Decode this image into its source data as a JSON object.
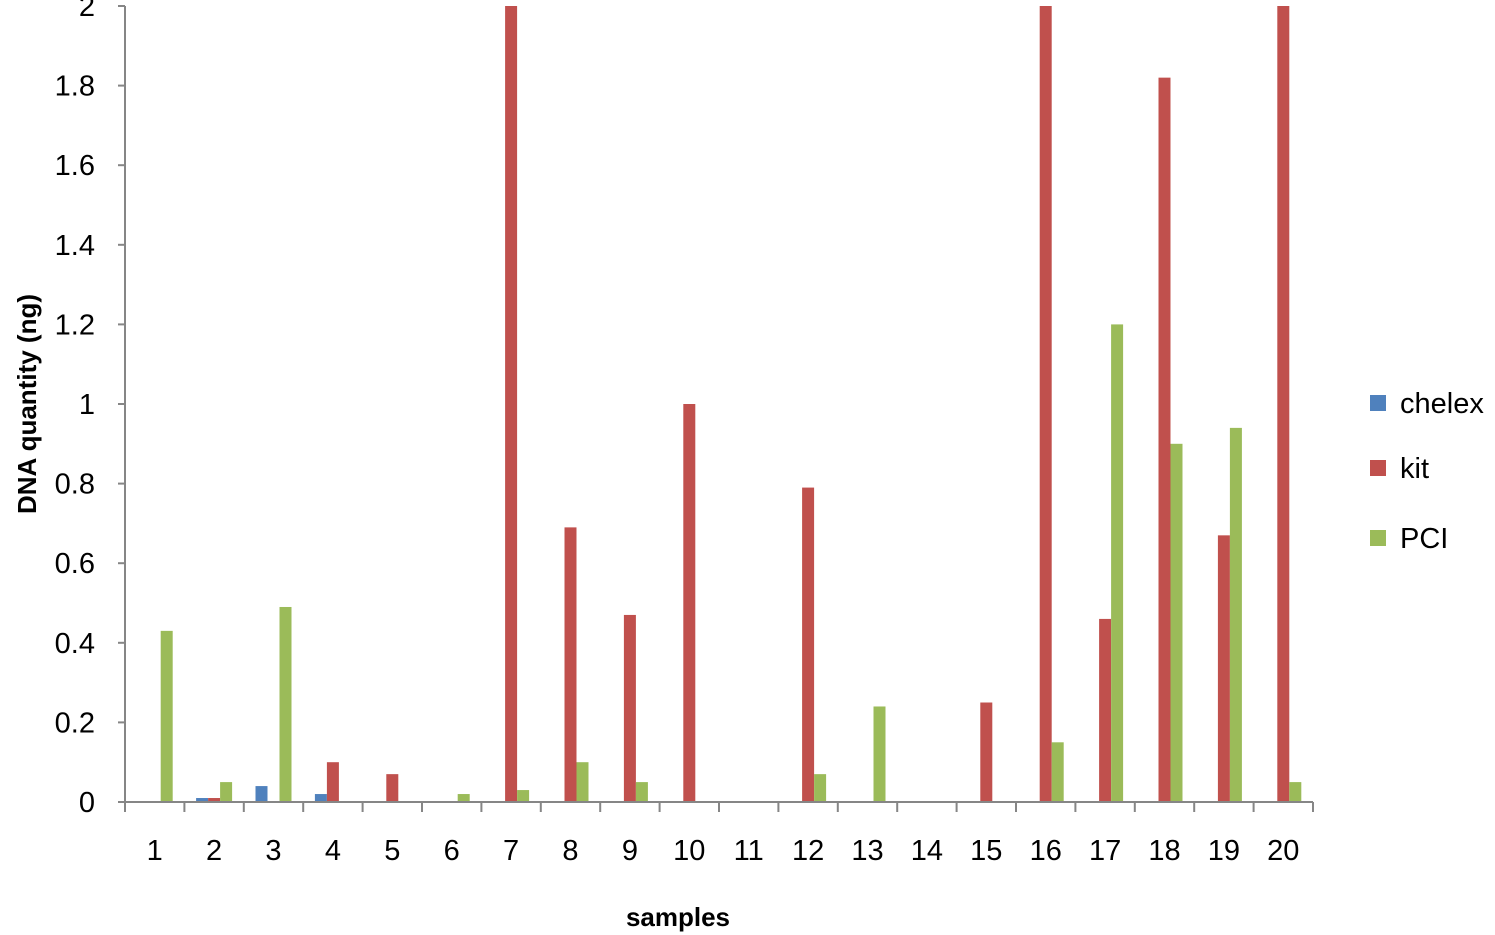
{
  "chart_data": {
    "type": "bar",
    "xlabel": "samples",
    "ylabel": "DNA quantity (ng)",
    "ylim": [
      0,
      2
    ],
    "yticks": [
      "0",
      "0.2",
      "0.4",
      "0.6",
      "0.8",
      "1",
      "1.2",
      "1.4",
      "1.6",
      "1.8",
      "2"
    ],
    "categories": [
      "1",
      "2",
      "3",
      "4",
      "5",
      "6",
      "7",
      "8",
      "9",
      "10",
      "11",
      "12",
      "13",
      "14",
      "15",
      "16",
      "17",
      "18",
      "19",
      "20"
    ],
    "grid": false,
    "legend_position": "right",
    "series": [
      {
        "name": "chelex",
        "color": "#4F81BD",
        "values": [
          0,
          0.01,
          0.04,
          0.02,
          0,
          0,
          0,
          0,
          0,
          0,
          0,
          0,
          0,
          0,
          0,
          0,
          0,
          0,
          0,
          0
        ]
      },
      {
        "name": "kit",
        "color": "#C0504D",
        "values": [
          0,
          0.01,
          0,
          0.1,
          0.07,
          0,
          2,
          0.69,
          0.47,
          1,
          0,
          0.79,
          0,
          0,
          0.25,
          2,
          0.46,
          1.82,
          0.67,
          2
        ]
      },
      {
        "name": "PCI",
        "color": "#9BBB59",
        "values": [
          0.43,
          0.05,
          0.49,
          0,
          0,
          0.02,
          0.03,
          0.1,
          0.05,
          0,
          0,
          0.07,
          0.24,
          0,
          0,
          0.15,
          1.2,
          0.9,
          0.94,
          0.05
        ]
      }
    ]
  }
}
